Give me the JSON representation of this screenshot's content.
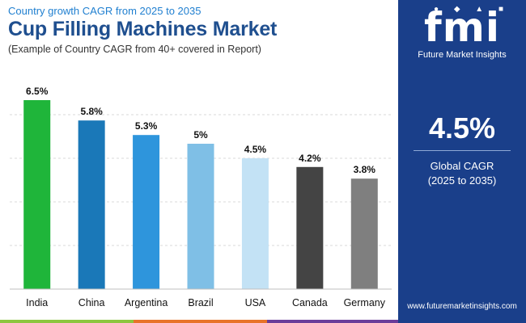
{
  "header": {
    "subtitle": "Country growth CAGR from 2025 to 2035",
    "title": "Cup Filling Machines Market",
    "note": "(Example of Country CAGR from 40+ covered in Report)"
  },
  "brand": {
    "logo_mark": "fmi",
    "logo_text": "Future Market Insights",
    "website": "www.futuremarketinsights.com"
  },
  "stat": {
    "value": "4.5%",
    "label_line1": "Global CAGR",
    "label_line2": "(2025 to 2035)"
  },
  "colors": {
    "panel": "#1a3f8a",
    "title": "#1f4f8f",
    "subtitle": "#1f7fd0",
    "footer": [
      "#8cc63f",
      "#e8732a",
      "#6a3d9a",
      "#1a3f8a"
    ]
  },
  "chart_data": {
    "type": "bar",
    "title": "Cup Filling Machines Market",
    "xlabel": "",
    "ylabel": "",
    "ylim": [
      0,
      7
    ],
    "grid": true,
    "categories": [
      "India",
      "China",
      "Argentina",
      "Brazil",
      "USA",
      "Canada",
      "Germany"
    ],
    "values": [
      6.5,
      5.8,
      5.3,
      5.0,
      4.5,
      4.2,
      3.8
    ],
    "labels": [
      "6.5%",
      "5.8%",
      "5.3%",
      "5%",
      "4.5%",
      "4.2%",
      "3.8%"
    ],
    "bar_colors": [
      "#1fb53a",
      "#1a78b8",
      "#2e95dc",
      "#7fbfe6",
      "#c3e2f5",
      "#444444",
      "#7f7f7f"
    ]
  }
}
